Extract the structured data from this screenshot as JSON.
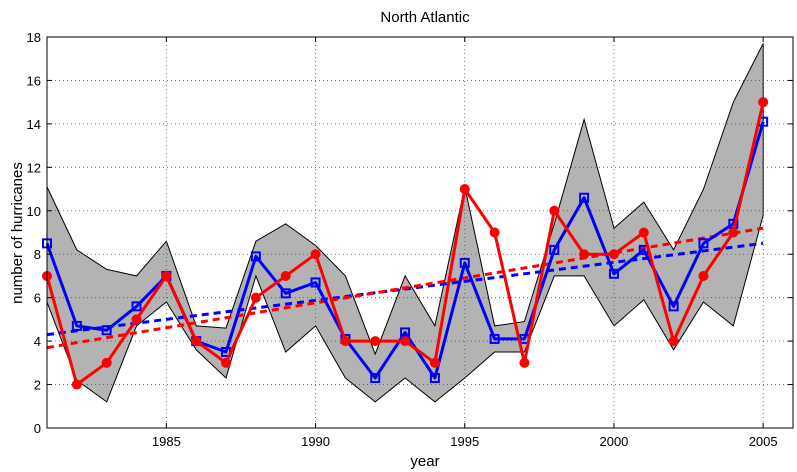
{
  "chart_data": {
    "type": "line",
    "title": "North Atlantic",
    "xlabel": "year",
    "ylabel": "number of hurricanes",
    "xlim": [
      1981,
      2006
    ],
    "ylim": [
      0,
      18
    ],
    "xticks": [
      1985,
      1990,
      1995,
      2000,
      2005
    ],
    "yticks": [
      0,
      2,
      4,
      6,
      8,
      10,
      12,
      14,
      16,
      18
    ],
    "grid": true,
    "legend": "none",
    "x": [
      1981,
      1982,
      1983,
      1984,
      1985,
      1986,
      1987,
      1988,
      1989,
      1990,
      1991,
      1992,
      1993,
      1994,
      1995,
      1996,
      1997,
      1998,
      1999,
      2000,
      2001,
      2002,
      2003,
      2004,
      2005
    ],
    "band": {
      "color": "#b3b3b3",
      "upper": [
        11.1,
        8.2,
        7.3,
        7.0,
        8.6,
        4.7,
        4.6,
        8.6,
        9.4,
        8.4,
        7.0,
        3.4,
        7.0,
        4.7,
        11.1,
        4.7,
        4.9,
        9.4,
        14.2,
        9.2,
        10.4,
        8.2,
        11.0,
        15.0,
        17.7
      ],
      "lower": [
        5.8,
        2.2,
        1.2,
        4.7,
        5.8,
        3.6,
        2.3,
        7.0,
        3.5,
        4.7,
        2.3,
        1.2,
        2.3,
        1.2,
        2.3,
        3.5,
        3.5,
        7.0,
        7.0,
        4.7,
        5.9,
        3.6,
        5.8,
        4.7,
        9.8
      ]
    },
    "series": [
      {
        "color": "#0000ff",
        "marker": "square",
        "values": [
          8.5,
          4.7,
          4.5,
          5.6,
          7.0,
          4.0,
          3.5,
          7.9,
          6.2,
          6.7,
          4.1,
          2.3,
          4.4,
          2.3,
          7.6,
          4.1,
          4.1,
          8.2,
          10.6,
          7.1,
          8.2,
          5.6,
          8.5,
          9.4,
          14.1
        ],
        "trend": [
          4.3,
          8.5
        ]
      },
      {
        "color": "#ff0000",
        "marker": "circle",
        "values": [
          7,
          2,
          3,
          5,
          7,
          4,
          3,
          6,
          7,
          8,
          4,
          4,
          4,
          3,
          11,
          9,
          3,
          10,
          8,
          8,
          9,
          4,
          7,
          9,
          15
        ],
        "trend": [
          3.7,
          9.2
        ]
      }
    ]
  }
}
